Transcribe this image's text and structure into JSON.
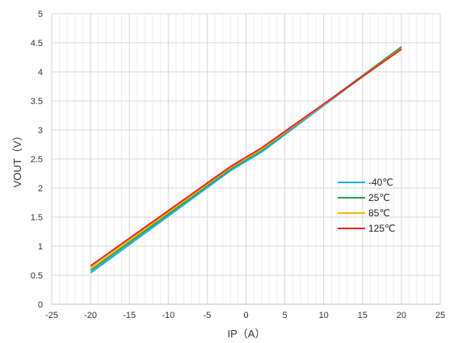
{
  "chart_data": {
    "type": "line",
    "xlabel": "IP（A）",
    "ylabel": "VOUT（V）",
    "xlim": [
      -25,
      25
    ],
    "ylim": [
      0,
      5
    ],
    "xticks": [
      "-25",
      "-20",
      "-15",
      "-10",
      "-5",
      "0",
      "5",
      "10",
      "15",
      "20",
      "25"
    ],
    "yticks": [
      "0",
      "0.5",
      "1",
      "1.5",
      "2",
      "2.5",
      "3",
      "3.5",
      "4",
      "4.5",
      "5"
    ],
    "grid": true,
    "legend_position": "right",
    "series": [
      {
        "name": "-40℃",
        "color": "#1fa9e1",
        "x": [
          -20,
          -2,
          2,
          20
        ],
        "y": [
          0.54,
          2.3,
          2.62,
          4.42
        ]
      },
      {
        "name": "25℃",
        "color": "#22a24a",
        "x": [
          -20,
          -2,
          2,
          20
        ],
        "y": [
          0.58,
          2.33,
          2.65,
          4.43
        ]
      },
      {
        "name": "85℃",
        "color": "#f6b800",
        "x": [
          -20,
          -2,
          2,
          20
        ],
        "y": [
          0.62,
          2.35,
          2.67,
          4.4
        ]
      },
      {
        "name": "125℃",
        "color": "#e8262a",
        "x": [
          -20,
          -2,
          2,
          20
        ],
        "y": [
          0.66,
          2.37,
          2.69,
          4.39
        ]
      }
    ]
  }
}
